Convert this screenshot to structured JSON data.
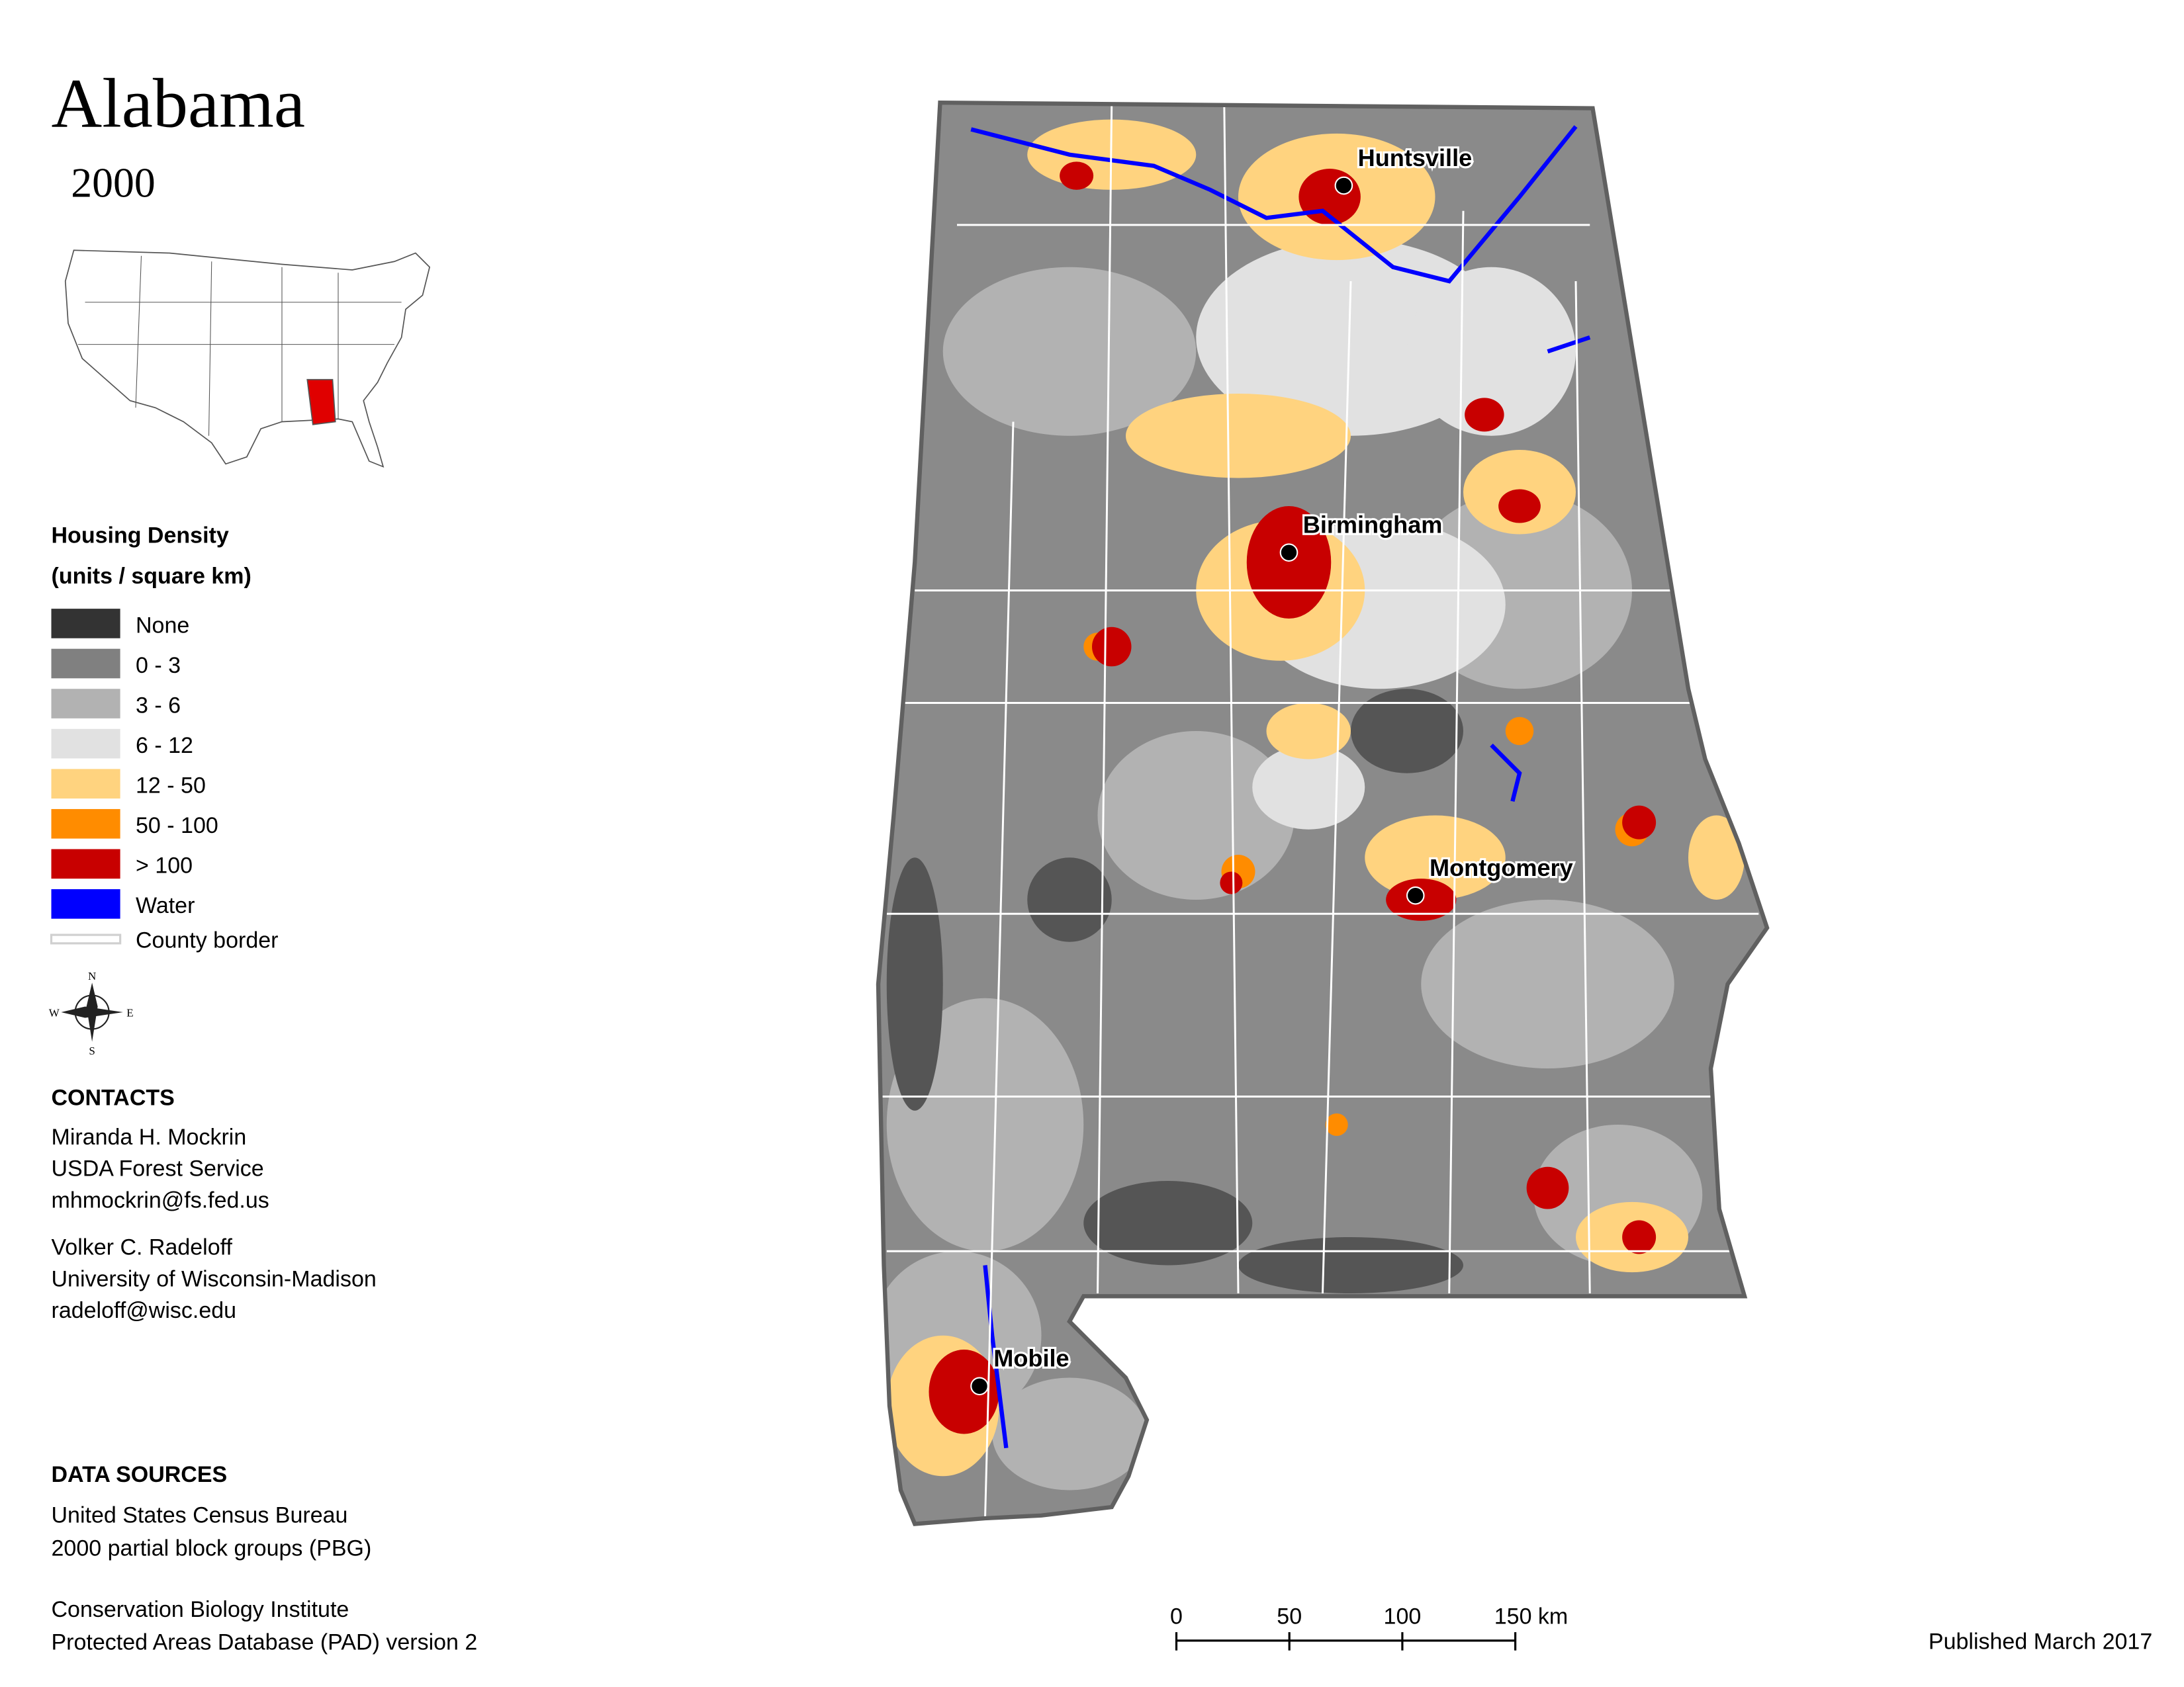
{
  "title": "Alabama",
  "year": "2000",
  "legend": {
    "title": [
      "Housing Density",
      "(units / square km)"
    ],
    "items": [
      {
        "label": "None",
        "color": "#333333"
      },
      {
        "label": "0 - 3",
        "color": "#808080"
      },
      {
        "label": "3 - 6",
        "color": "#b2b2b2"
      },
      {
        "label": "6 - 12",
        "color": "#e1e1e1"
      },
      {
        "label": "12 - 50",
        "color": "#ffd37f"
      },
      {
        "label": "50 - 100",
        "color": "#ff8c00"
      },
      {
        "label": "> 100",
        "color": "#c80000"
      },
      {
        "label": "Water",
        "color": "#0000ff"
      }
    ],
    "border": {
      "label": "County border",
      "color": "#d0d0d0"
    }
  },
  "compass": {
    "n": "N",
    "e": "E",
    "s": "S",
    "w": "W"
  },
  "cities": [
    "Huntsville",
    "Birmingham",
    "Montgomery",
    "Mobile"
  ],
  "contacts": {
    "heading": "CONTACTS",
    "people": [
      [
        "Miranda H. Mockrin",
        "USDA Forest Service",
        "mhmockrin@fs.fed.us"
      ],
      [
        "Volker C. Radeloff",
        "University of Wisconsin-Madison",
        "radeloff@wisc.edu"
      ]
    ]
  },
  "data_sources": {
    "heading": "DATA SOURCES",
    "entries": [
      [
        "United States Census Bureau",
        "2000 partial block groups (PBG)"
      ],
      [
        "Conservation Biology Institute",
        "Protected Areas Database (PAD) version 2"
      ]
    ]
  },
  "scale_bar": {
    "ticks": [
      0,
      50,
      100,
      {
        "value": 150,
        "label": "150 km"
      }
    ]
  },
  "published": "Published March 2017"
}
